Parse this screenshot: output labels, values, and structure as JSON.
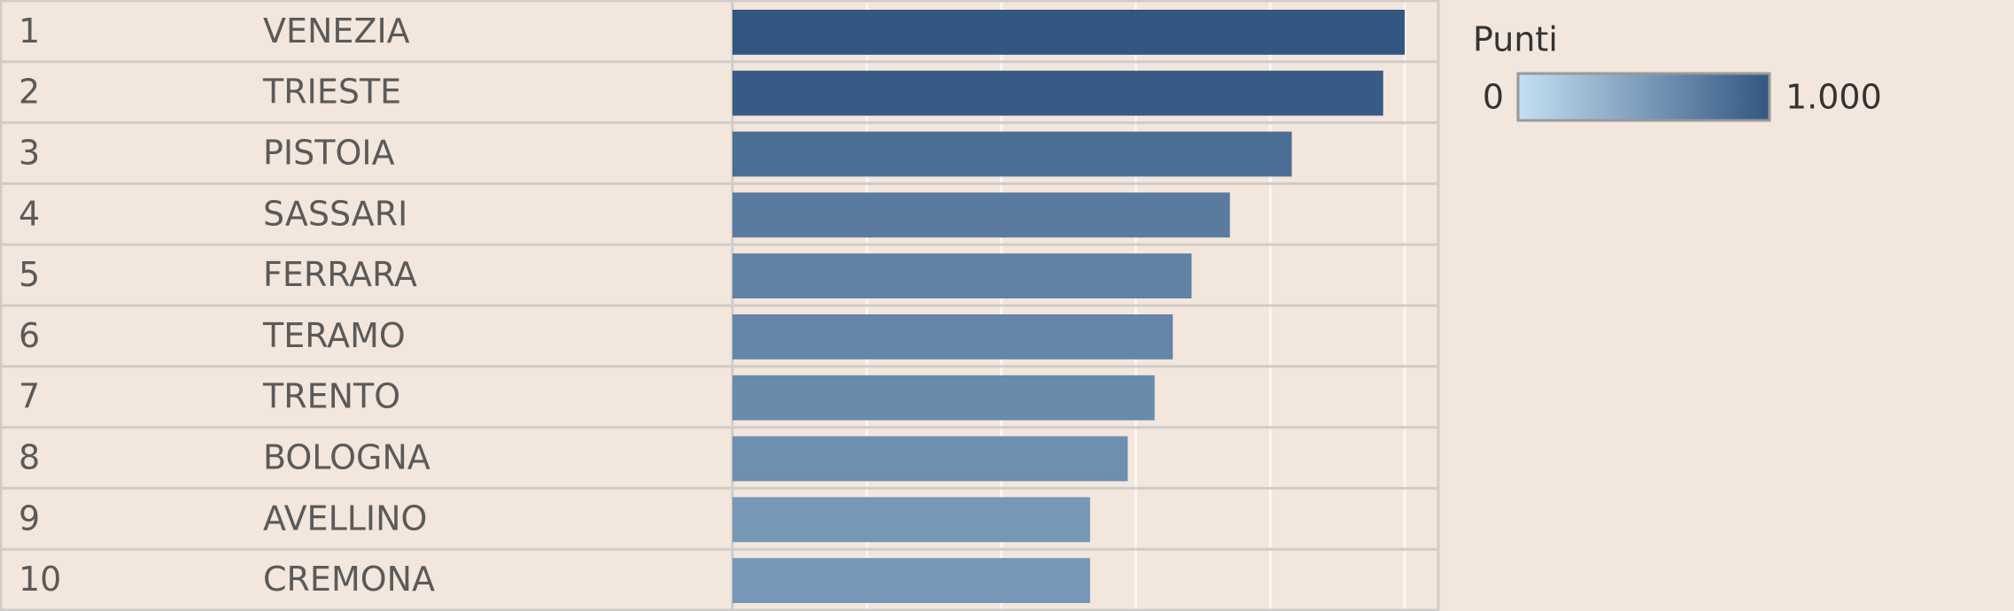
{
  "chart_data": {
    "type": "bar",
    "ranks": [
      1,
      2,
      3,
      4,
      5,
      6,
      7,
      8,
      9,
      10
    ],
    "categories": [
      "VENEZIA",
      "TRIESTE",
      "PISTOIA",
      "SASSARI",
      "FERRARA",
      "TERAMO",
      "TRENTO",
      "BOLOGNA",
      "AVELLINO",
      "CREMONA"
    ],
    "values": [
      1000,
      968,
      832,
      740,
      683,
      655,
      628,
      588,
      532,
      532
    ],
    "xlim": [
      0,
      1050
    ],
    "xticks": [
      200,
      400,
      600,
      800,
      1000
    ],
    "grid": true,
    "legend": {
      "title": "Punti",
      "ticks": [
        0,
        {
          "value": 1000,
          "label": "1.000"
        }
      ],
      "colors": [
        "#c4e0f3",
        "#325781"
      ]
    }
  }
}
